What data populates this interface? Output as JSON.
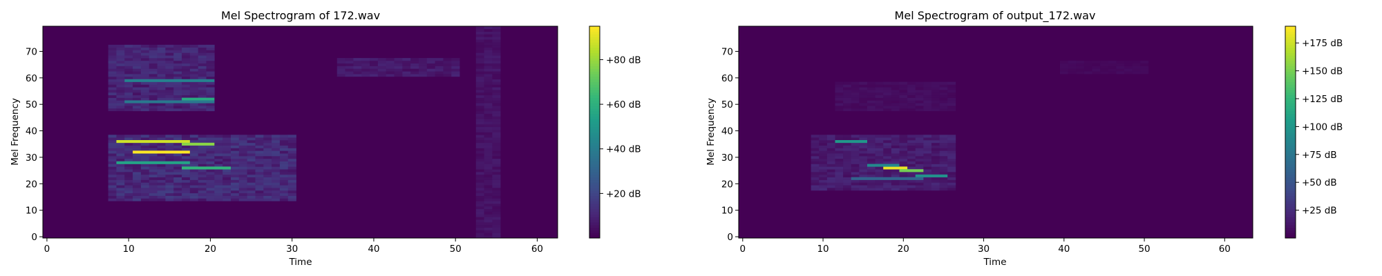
{
  "chart_data": [
    {
      "type": "heatmap",
      "title": "Mel Spectrogram of 172.wav",
      "xlabel": "Time",
      "ylabel": "Mel Frequency",
      "xlim": [
        -0.5,
        62.5
      ],
      "ylim": [
        -0.5,
        79.5
      ],
      "x_ticks": [
        0,
        10,
        20,
        30,
        40,
        50,
        60
      ],
      "y_ticks": [
        0,
        10,
        20,
        30,
        40,
        50,
        60,
        70
      ],
      "n_frames": 63,
      "n_mels": 80,
      "colormap": "viridis",
      "colorbar": {
        "range": [
          0,
          95
        ],
        "ticks": [
          20,
          40,
          60,
          80
        ],
        "tick_labels": [
          "+20 dB",
          "+40 dB",
          "+60 dB",
          "+80 dB"
        ]
      },
      "features": [
        {
          "t0": 9,
          "t1": 17,
          "m": 36,
          "v": 88
        },
        {
          "t0": 17,
          "t1": 20,
          "m": 35,
          "v": 78
        },
        {
          "t0": 11,
          "t1": 17,
          "m": 32,
          "v": 95
        },
        {
          "t0": 9,
          "t1": 17,
          "m": 28,
          "v": 55
        },
        {
          "t0": 17,
          "t1": 22,
          "m": 26,
          "v": 62
        },
        {
          "t0": 17,
          "t1": 20,
          "m": 52,
          "v": 58
        },
        {
          "t0": 10,
          "t1": 20,
          "m": 59,
          "v": 42
        },
        {
          "t0": 10,
          "t1": 20,
          "m": 51,
          "v": 38
        }
      ],
      "regions": [
        {
          "t0": 8,
          "t1": 20,
          "m0": 48,
          "m1": 72,
          "v": 12
        },
        {
          "t0": 8,
          "t1": 30,
          "m0": 14,
          "m1": 38,
          "v": 14
        },
        {
          "t0": 36,
          "t1": 50,
          "m0": 61,
          "m1": 67,
          "v": 8
        },
        {
          "t0": 53,
          "t1": 55,
          "m0": 0,
          "m1": 79,
          "v": 6
        }
      ]
    },
    {
      "type": "heatmap",
      "title": "Mel Spectrogram of output_172.wav",
      "xlabel": "Time",
      "ylabel": "Mel Frequency",
      "xlim": [
        -0.5,
        63.5
      ],
      "ylim": [
        -0.5,
        79.5
      ],
      "x_ticks": [
        0,
        10,
        20,
        30,
        40,
        50,
        60
      ],
      "y_ticks": [
        0,
        10,
        20,
        30,
        40,
        50,
        60,
        70
      ],
      "n_frames": 64,
      "n_mels": 80,
      "colormap": "viridis",
      "colorbar": {
        "range": [
          0,
          190
        ],
        "ticks": [
          25,
          50,
          75,
          100,
          125,
          150,
          175
        ],
        "tick_labels": [
          "+25 dB",
          "+50 dB",
          "+75 dB",
          "+100 dB",
          "+125 dB",
          "+150 dB",
          "+175 dB"
        ]
      },
      "features": [
        {
          "t0": 12,
          "t1": 15,
          "m": 36,
          "v": 100
        },
        {
          "t0": 18,
          "t1": 20,
          "m": 26,
          "v": 185
        },
        {
          "t0": 20,
          "t1": 22,
          "m": 25,
          "v": 150
        },
        {
          "t0": 16,
          "t1": 19,
          "m": 27,
          "v": 90
        },
        {
          "t0": 22,
          "t1": 25,
          "m": 23,
          "v": 95
        },
        {
          "t0": 14,
          "t1": 22,
          "m": 22,
          "v": 60
        }
      ],
      "regions": [
        {
          "t0": 9,
          "t1": 26,
          "m0": 18,
          "m1": 38,
          "v": 18
        },
        {
          "t0": 12,
          "t1": 26,
          "m0": 48,
          "m1": 58,
          "v": 8
        },
        {
          "t0": 40,
          "t1": 50,
          "m0": 62,
          "m1": 66,
          "v": 5
        }
      ]
    }
  ]
}
